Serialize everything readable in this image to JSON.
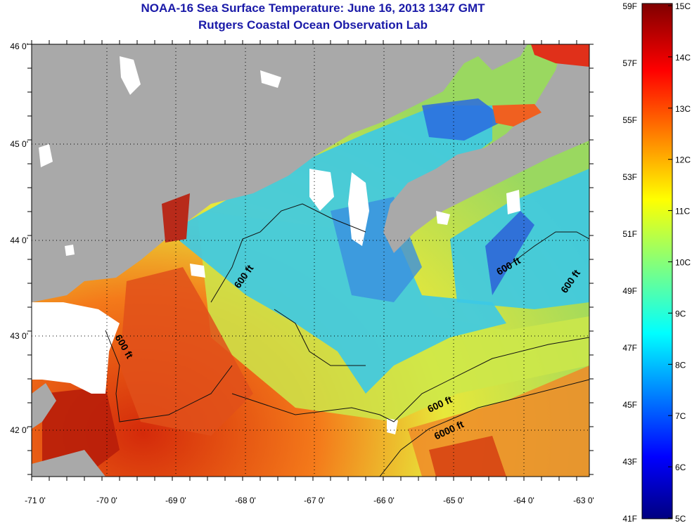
{
  "title": "NOAA-16 Sea Surface Temperature:  June 16, 2013 1347 GMT",
  "subtitle": "Rutgers Coastal Ocean Observation Lab",
  "map": {
    "lon_ticks": [
      "-71 0'",
      "-70 0'",
      "-69 0'",
      "-68 0'",
      "-67 0'",
      "-66 0'",
      "-65 0'",
      "-64 0'",
      "-63 0'"
    ],
    "lat_ticks": [
      "46 0'",
      "45 0'",
      "44 0'",
      "43 0'",
      "42 0'"
    ],
    "contour_labels": [
      "600 ft",
      "600 ft",
      "600 ft",
      "600 ft",
      "600 ft",
      "6000 ft"
    ],
    "colors": {
      "land": "#a9a9a9",
      "cloud": "#ffffff"
    }
  },
  "colorbar": {
    "fahrenheit": [
      "59F",
      "57F",
      "55F",
      "53F",
      "51F",
      "49F",
      "47F",
      "45F",
      "43F",
      "41F"
    ],
    "celsius": [
      "15C",
      "14C",
      "13C",
      "12C",
      "11C",
      "10C",
      "9C",
      "8C",
      "7C",
      "6C",
      "5C"
    ]
  }
}
